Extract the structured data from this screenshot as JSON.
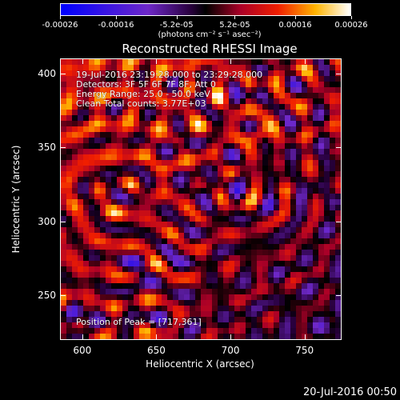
{
  "colorbar": {
    "tick_labels": [
      "-0.00026",
      "-0.00016",
      "-5.2e-05",
      "5.2e-05",
      "0.00016",
      "0.00026"
    ],
    "units": "(photons cm⁻² s⁻¹ asec⁻²)",
    "range": [
      -0.00026,
      0.00026
    ]
  },
  "title": "Reconstructed RHESSI Image",
  "annotations": {
    "time_range": "19-Jul-2016 23:19:28.000 to 23:29:28.000",
    "detectors": "Detectors: 3F 5F 6F 7F 8F, Att 0",
    "energy": "Energy Range: 25.0 - 50.0 keV",
    "clean": "Clean     Total counts: 3.77E+03",
    "peak": "Position of Peak = [717,361]"
  },
  "chart_data": {
    "type": "heatmap",
    "title": "Reconstructed RHESSI Image",
    "xlabel": "Heliocentric X (arcsec)",
    "ylabel": "Heliocentric Y (arcsec)",
    "xlim": [
      585,
      775
    ],
    "ylim": [
      220,
      410
    ],
    "xticks": [
      "600",
      "650",
      "700",
      "750"
    ],
    "yticks": [
      "250",
      "300",
      "350",
      "400"
    ],
    "peak": [
      717,
      361
    ]
  },
  "footer": {
    "timestamp": "20-Jul-2016 00:50"
  }
}
